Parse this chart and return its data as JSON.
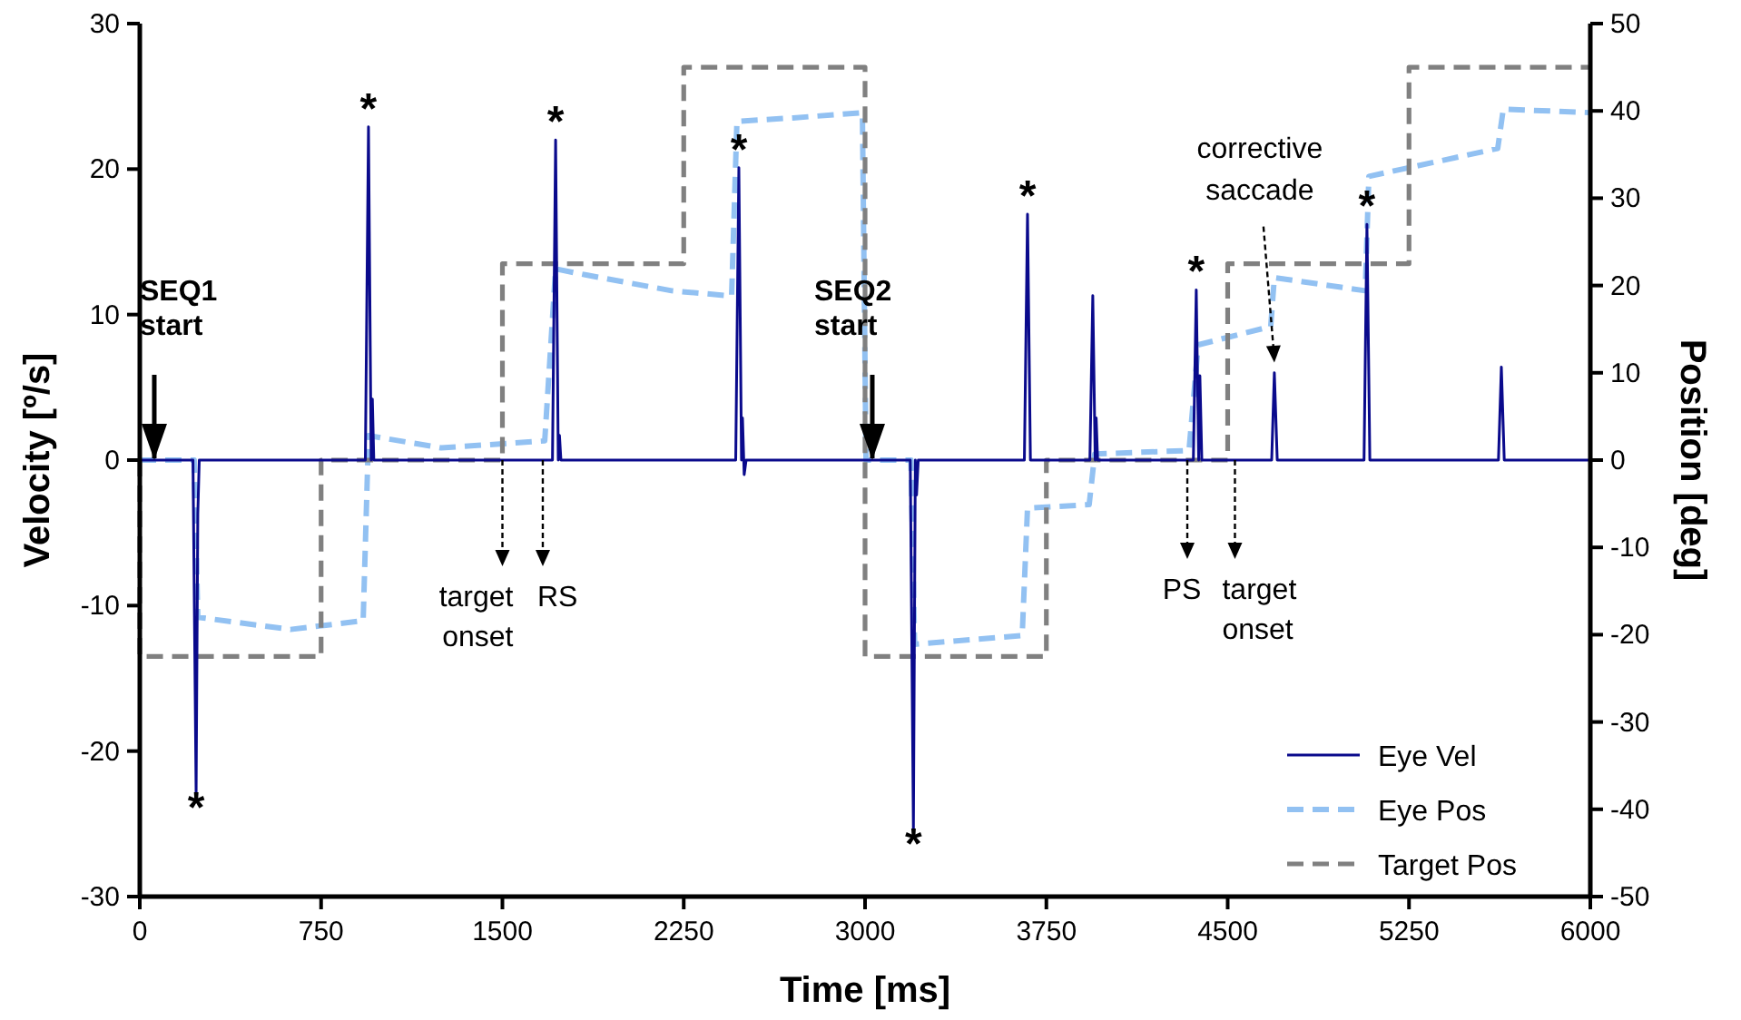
{
  "chart_data": {
    "type": "line",
    "xlabel": "Time [ms]",
    "ylabel": "Velocity [º/s]",
    "y2label": "Position [deg]",
    "xlim": [
      0,
      6000
    ],
    "xticks": [
      0,
      750,
      1500,
      2250,
      3000,
      3750,
      4500,
      5250,
      6000
    ],
    "ylim": [
      -30,
      30
    ],
    "yticks": [
      -30,
      -20,
      -10,
      0,
      10,
      20,
      30
    ],
    "y2lim": [
      -50,
      50
    ],
    "y2ticks": [
      -50,
      -40,
      -30,
      -20,
      -10,
      0,
      10,
      20,
      30,
      40,
      50
    ],
    "grid": false,
    "legend": "bottom right",
    "marker": "none",
    "series": [
      {
        "name": "Eye Vel",
        "color": "#0a0a8c",
        "line_style": "solid",
        "x": [
          0,
          220,
          233,
          240,
          246,
          933,
          946,
          957,
          962,
          968,
          1707,
          1720,
          1731,
          1736,
          1742,
          2465,
          2478,
          2489,
          2493,
          2500,
          2508,
          3187,
          3200,
          3208,
          3213,
          3220,
          3659,
          3672,
          3684,
          3930,
          3942,
          3952,
          3956,
          3962,
          4358,
          4370,
          4380,
          4385,
          4393,
          4682,
          4693,
          4705,
          5064,
          5076,
          5088,
          5620,
          5632,
          5644,
          6000
        ],
        "values": [
          0,
          0,
          -22.9,
          -3.7,
          0,
          0,
          22.9,
          0,
          4.2,
          0,
          0,
          22.0,
          0,
          1.7,
          0,
          0,
          20.1,
          0,
          2.9,
          -1,
          0,
          0,
          -25.4,
          0,
          -2.4,
          0,
          0,
          16.9,
          0,
          0,
          11.3,
          0,
          2.9,
          0,
          0,
          11.7,
          0,
          5.8,
          0,
          0,
          6.0,
          0,
          0,
          16.2,
          0,
          0,
          6.4,
          0,
          0
        ]
      },
      {
        "name": "Eye Pos",
        "color": "#92c1f2",
        "line_style": "dashed",
        "axis": "y2",
        "x": [
          0,
          225,
          240,
          623,
          924,
          946,
          1247,
          1675,
          1720,
          1847,
          2200,
          2448,
          2470,
          2703,
          2989,
          3004,
          3190,
          3205,
          3650,
          3672,
          3927,
          3950,
          4340,
          4378,
          4678,
          4693,
          5069,
          5084,
          5617,
          5640,
          6000
        ],
        "values": [
          0,
          0,
          -18,
          -19.4,
          -18.4,
          2.8,
          1.4,
          2.2,
          21.9,
          21.2,
          19.4,
          18.8,
          38.8,
          39.2,
          39.8,
          0,
          0,
          -21.1,
          -20.1,
          -5.5,
          -5.1,
          0.7,
          1.1,
          13.2,
          15.3,
          20.9,
          19.4,
          32.5,
          35.7,
          40.2,
          39.8
        ]
      },
      {
        "name": "Target  Pos",
        "type": "step",
        "color": "#808080",
        "line_style": "dashed",
        "axis": "y2",
        "x": [
          0,
          0,
          750,
          1500,
          2250,
          3000,
          3750,
          4500,
          5250,
          6000
        ],
        "values": [
          0,
          -22.5,
          0,
          22.5,
          45,
          -22.5,
          0,
          22.5,
          45,
          45
        ]
      }
    ],
    "annotations": [
      {
        "text": "SEQ1 start",
        "x": 60,
        "y": 0
      },
      {
        "text": "SEQ2 start",
        "x": 3030,
        "y": 0
      },
      {
        "text": "target onset",
        "x": 1500,
        "y": 0
      },
      {
        "text": "RS",
        "x": 1667,
        "y": 0
      },
      {
        "text": "PS",
        "x": 4333,
        "y": 0
      },
      {
        "text": "target onset",
        "x": 4530,
        "y": 0
      },
      {
        "text": "corrective saccade",
        "x": 4693,
        "y": 6.7
      },
      {
        "text": "*",
        "x": 233,
        "y": -22.9
      },
      {
        "text": "*",
        "x": 946,
        "y": 22.9
      },
      {
        "text": "*",
        "x": 1720,
        "y": 22.0
      },
      {
        "text": "*",
        "x": 2478,
        "y": 20.1
      },
      {
        "text": "*",
        "x": 3200,
        "y": -25.4
      },
      {
        "text": "*",
        "x": 3672,
        "y": 16.9
      },
      {
        "text": "*",
        "x": 4370,
        "y": 11.7
      },
      {
        "text": "*",
        "x": 5076,
        "y": 16.2
      }
    ]
  }
}
